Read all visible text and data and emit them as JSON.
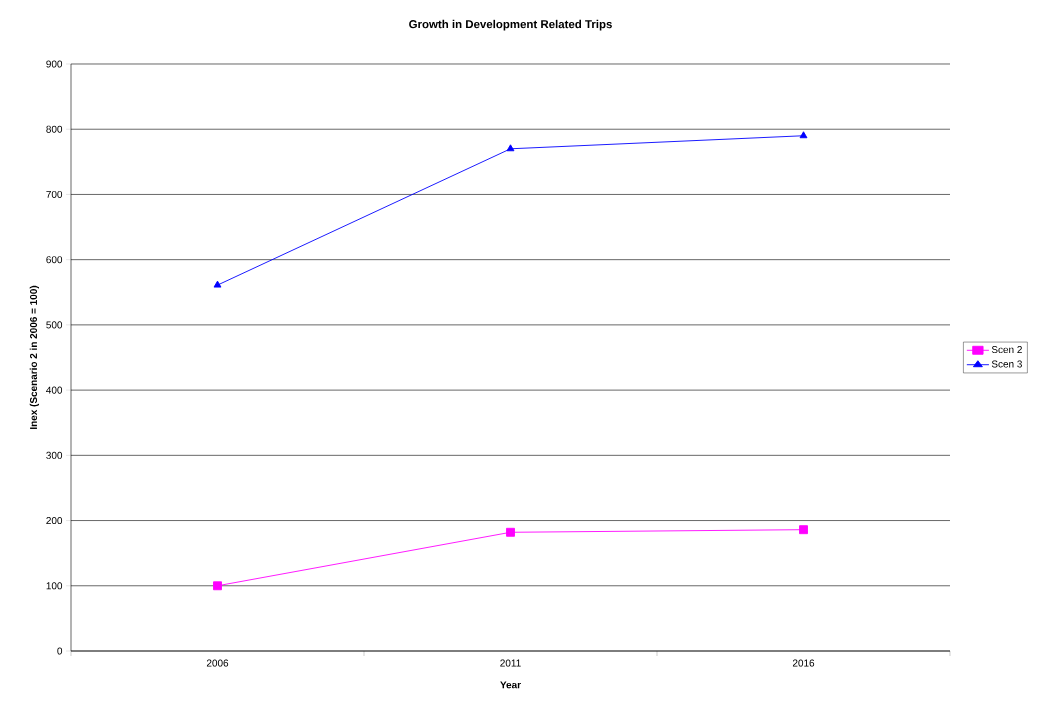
{
  "chart_data": {
    "type": "line",
    "title": "Growth in Development Related Trips",
    "xlabel": "Year",
    "ylabel": "Inex (Scenario 2 in 2006 = 100)",
    "categories": [
      "2006",
      "2011",
      "2016"
    ],
    "series": [
      {
        "name": "Scen 2",
        "color": "#ff00ff",
        "marker": "square",
        "values": [
          100,
          182,
          186
        ]
      },
      {
        "name": "Scen 3",
        "color": "#0000ff",
        "marker": "triangle",
        "values": [
          561,
          770,
          790
        ]
      }
    ],
    "ylim": [
      0,
      900
    ],
    "yticks": [
      0,
      100,
      200,
      300,
      400,
      500,
      600,
      700,
      800,
      900
    ],
    "grid": "y",
    "legend": "right",
    "line_style": "solid"
  }
}
